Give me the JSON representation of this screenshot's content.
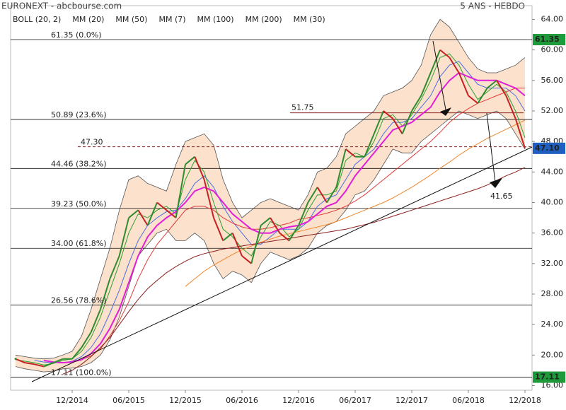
{
  "chart_data": {
    "type": "line",
    "source": "EURONEXT - abcbourse.com",
    "period": "5 ANS - HEBDO",
    "categories": [
      null,
      null,
      null,
      null,
      null,
      null,
      "12/2014",
      null,
      null,
      null,
      null,
      null,
      "06/2015",
      null,
      null,
      null,
      null,
      null,
      "12/2015",
      null,
      null,
      null,
      null,
      null,
      "06/2016",
      null,
      null,
      null,
      null,
      null,
      "12/2016",
      null,
      null,
      null,
      null,
      null,
      "06/2017",
      null,
      null,
      null,
      null,
      null,
      "12/2017",
      null,
      null,
      null,
      null,
      null,
      "06/2018",
      null,
      null,
      null,
      null,
      null,
      "12/2018"
    ],
    "values": [
      19.5,
      19,
      18.8,
      18.5,
      19,
      19.5,
      19.5,
      21,
      23,
      26,
      30,
      33,
      38,
      39,
      37,
      40,
      39,
      38,
      45,
      46,
      43,
      38,
      35,
      36,
      33,
      32,
      37,
      38,
      36,
      35,
      37,
      40,
      42,
      40,
      42,
      47,
      46,
      46,
      49,
      52,
      51,
      49,
      52,
      54,
      57,
      60,
      59,
      57,
      54,
      53,
      55,
      56,
      54,
      51,
      47.1
    ],
    "color": "#2e8b2e",
    "bollinger": {
      "name": "BOLL (20, 2)",
      "color": "#555555",
      "fill": "#fbd9bf",
      "upper": [
        20,
        19.8,
        19.6,
        19.5,
        19.6,
        20,
        20.5,
        22.5,
        26,
        30,
        34,
        39,
        43,
        43.5,
        42.5,
        42,
        41.5,
        45,
        48,
        48.5,
        49,
        47.5,
        43,
        40,
        38,
        39,
        40,
        40.5,
        40,
        39.5,
        39,
        41,
        44,
        44.5,
        46,
        49,
        50,
        51,
        52,
        54,
        54.5,
        55,
        56,
        58,
        62,
        64,
        63,
        61,
        59,
        57.5,
        57,
        57,
        57.5,
        58,
        59
      ],
      "lower": [
        18.5,
        18.2,
        18,
        17.8,
        17.9,
        18.2,
        18.3,
        18.5,
        19,
        20,
        22,
        25,
        29,
        33,
        34.5,
        36,
        36.5,
        35,
        35,
        36,
        35,
        32,
        30,
        31,
        30.5,
        29.5,
        32,
        33.5,
        33,
        32.5,
        33,
        34,
        36,
        37,
        37.5,
        39,
        41,
        41.5,
        43,
        45,
        47,
        46.5,
        46.5,
        48,
        49,
        50,
        51,
        52,
        51.5,
        51,
        51.5,
        52,
        51,
        49,
        47
      ]
    },
    "series": [
      {
        "name": "MM (20)",
        "color": "#4a6fe0",
        "values": [
          null,
          null,
          19.3,
          19.1,
          19,
          19,
          19.2,
          19.8,
          21,
          22.8,
          25.5,
          28.5,
          32,
          35,
          37,
          38,
          38.8,
          39,
          40.5,
          42.5,
          43.5,
          42,
          39.5,
          37.5,
          36,
          34.5,
          34.5,
          35.5,
          36.5,
          36.5,
          36.5,
          37.5,
          39.5,
          40.5,
          41,
          43,
          45,
          46,
          47,
          49,
          50.5,
          50.5,
          51,
          52.5,
          54,
          56.5,
          58,
          58.5,
          57,
          55.5,
          55,
          55,
          55,
          54,
          52
        ]
      },
      {
        "name": "MM (50)",
        "color": "#e03a3a",
        "values": [
          null,
          null,
          null,
          null,
          null,
          null,
          19.2,
          19.4,
          19.9,
          20.8,
          22.5,
          24.5,
          27,
          30,
          32.5,
          34.5,
          36,
          37.5,
          39,
          39.5,
          39.5,
          39,
          38,
          37.3,
          36.8,
          36.5,
          36.5,
          36.7,
          37,
          37.3,
          37.8,
          38,
          38.3,
          38.6,
          39,
          39.5,
          40.2,
          41,
          42,
          43,
          44,
          45,
          46,
          47,
          48,
          49.2,
          50.5,
          51.5,
          52.3,
          53,
          53.5,
          54,
          54.5,
          55,
          55
        ]
      },
      {
        "name": "MM (7)",
        "color": "#2fa02f",
        "values": [
          19.4,
          19.2,
          19,
          18.7,
          18.9,
          19.3,
          19.5,
          20.5,
          22.3,
          25,
          28.5,
          32,
          36,
          38.5,
          38,
          39,
          39.5,
          38.5,
          43,
          45.5,
          44,
          40,
          36.5,
          35.5,
          34,
          33,
          35.5,
          37.5,
          37,
          35.5,
          36.5,
          39,
          41,
          41,
          41.5,
          45.5,
          46.5,
          46,
          48,
          51,
          51.5,
          50,
          51.5,
          53.5,
          56,
          59,
          59.5,
          58,
          55.5,
          53.5,
          54.5,
          55.5,
          54.5,
          52,
          48.5
        ]
      },
      {
        "name": "MM (100)",
        "color": "#f0862a",
        "values": [
          null,
          null,
          null,
          null,
          null,
          null,
          null,
          null,
          null,
          null,
          null,
          null,
          null,
          null,
          null,
          null,
          null,
          null,
          29,
          30,
          31,
          31.8,
          32.5,
          33.2,
          33.8,
          34.3,
          34.8,
          35.2,
          35.6,
          35.9,
          36.2,
          36.5,
          36.8,
          37.1,
          37.5,
          38,
          38.5,
          39,
          39.5,
          40,
          40.6,
          41.3,
          42,
          42.8,
          43.6,
          44.5,
          45.3,
          46.2,
          47,
          47.7,
          48.4,
          49,
          49.6,
          50.2,
          50.8
        ]
      },
      {
        "name": "MM (200)",
        "color": "#8b1e1e",
        "values": [
          null,
          null,
          null,
          null,
          null,
          17.5,
          18,
          18.8,
          19.8,
          21,
          22.3,
          24,
          25.7,
          27.3,
          28.7,
          29.8,
          30.8,
          31.6,
          32.3,
          32.9,
          33.3,
          33.6,
          33.9,
          34.1,
          34.3,
          34.5,
          34.7,
          34.9,
          35.1,
          35.3,
          35.5,
          35.7,
          35.9,
          36.1,
          36.3,
          36.5,
          36.8,
          37.1,
          37.4,
          37.8,
          38.2,
          38.6,
          39,
          39.4,
          39.8,
          40.2,
          40.6,
          41,
          41.4,
          41.8,
          42.3,
          42.9,
          43.5,
          44,
          44.6
        ]
      },
      {
        "name": "MM (30)",
        "color": "#e020d8",
        "values": [
          null,
          null,
          null,
          19.3,
          19.1,
          19,
          19.1,
          19.4,
          20.2,
          21.5,
          23.5,
          26,
          29.5,
          33,
          35.5,
          37,
          38,
          38.8,
          40,
          41.5,
          42,
          41.5,
          40,
          38.5,
          37.5,
          36.5,
          36,
          36,
          36.5,
          36.8,
          37,
          37.5,
          38.5,
          39.5,
          40,
          41.5,
          43.5,
          45,
          46.5,
          48,
          49.5,
          50,
          50.5,
          51.5,
          52.5,
          54.5,
          56,
          57,
          56.5,
          56,
          56,
          56,
          55.5,
          55,
          54
        ]
      }
    ],
    "ylim": [
      15.4,
      65.8
    ],
    "yticks": [
      {
        "value": 16,
        "label": "16.00"
      },
      {
        "value": 20,
        "label": "20.00"
      },
      {
        "value": 24,
        "label": "24.00"
      },
      {
        "value": 28,
        "label": "28.00"
      },
      {
        "value": 32,
        "label": "32.00"
      },
      {
        "value": 36,
        "label": "36.00"
      },
      {
        "value": 40,
        "label": "40.00"
      },
      {
        "value": 44,
        "label": "44.00"
      },
      {
        "value": 48,
        "label": "48.00"
      },
      {
        "value": 52,
        "label": "52.00"
      },
      {
        "value": 56,
        "label": "56.00"
      },
      {
        "value": 60,
        "label": "60.00"
      },
      {
        "value": 64,
        "label": "64.00"
      }
    ],
    "fibonacci": [
      {
        "value": 61.35,
        "label": "61.35 (0.0%)"
      },
      {
        "value": 50.89,
        "label": "50.89 (23.6%)"
      },
      {
        "value": 44.46,
        "label": "44.46 (38.2%)"
      },
      {
        "value": 39.23,
        "label": "39.23 (50.0%)"
      },
      {
        "value": 34.0,
        "label": "34.00 (61.8%)"
      },
      {
        "value": 26.56,
        "label": "26.56 (78.6%)"
      },
      {
        "value": 17.11,
        "label": "17.11 (100.0%)"
      }
    ],
    "resistance": 51.75,
    "previous_close": {
      "value": 47.3,
      "label": "47.30"
    },
    "target": 41.65,
    "price_tags": [
      {
        "value": 61.35,
        "color": "#1f9a3a"
      },
      {
        "value": 47.1,
        "label": "47.10",
        "color": "#1f5fbf"
      },
      {
        "value": 17.11,
        "color": "#1f9a3a"
      }
    ]
  }
}
